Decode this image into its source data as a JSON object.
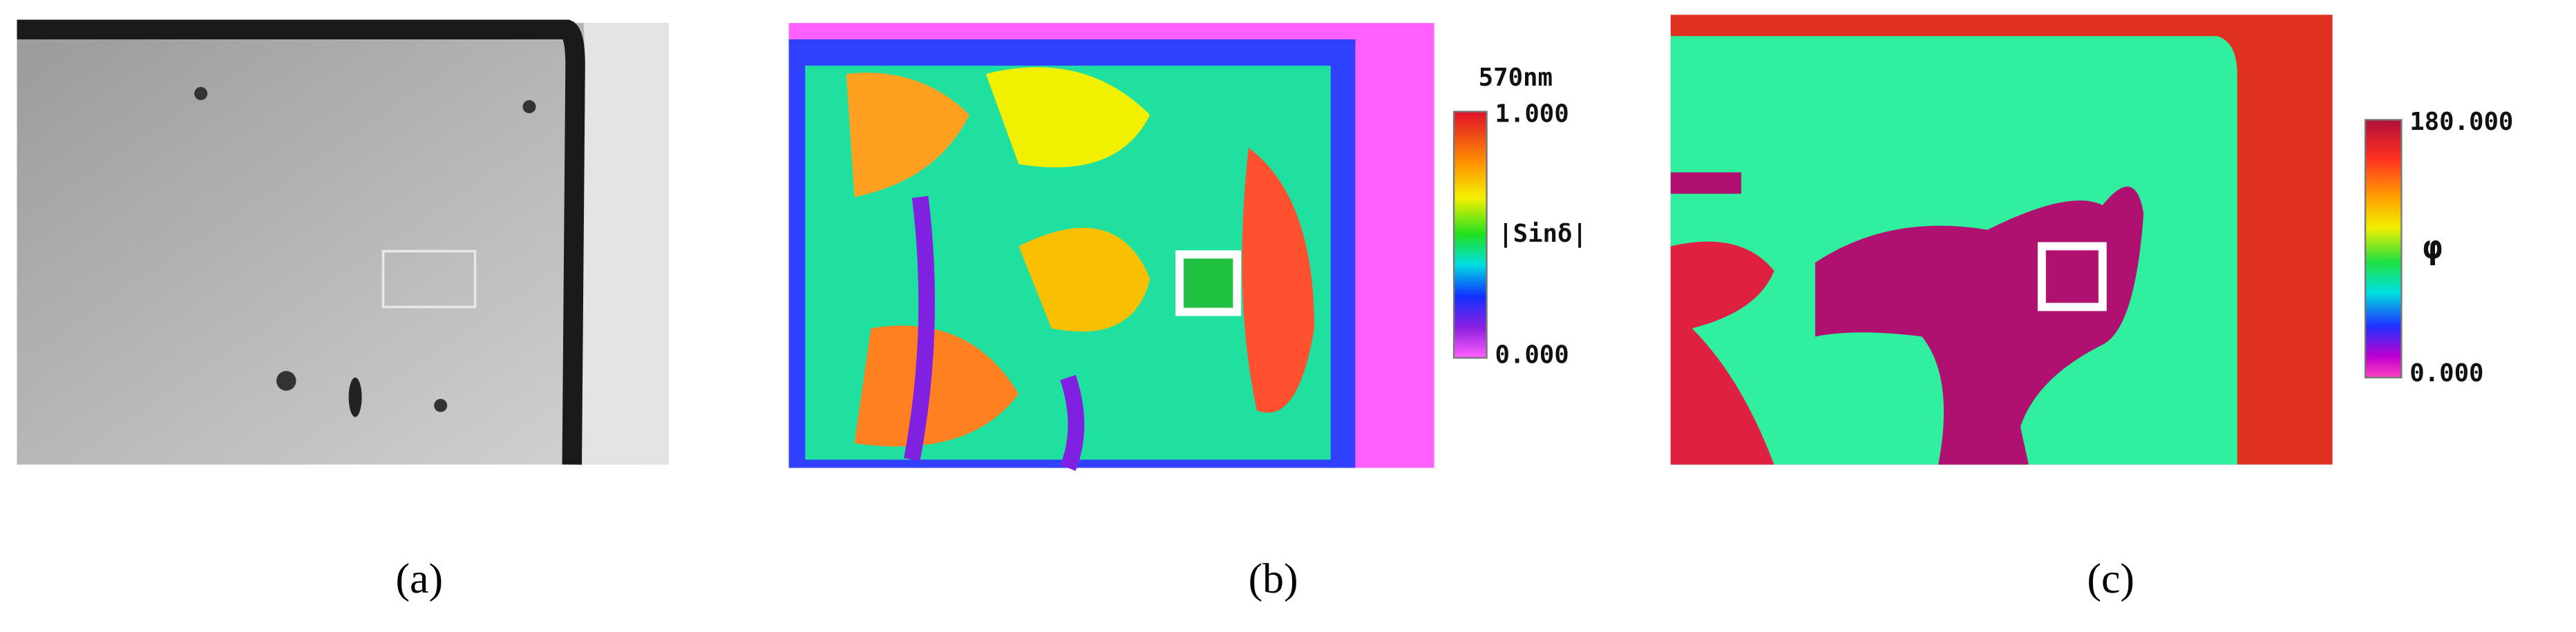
{
  "panels": [
    {
      "label": "(a)"
    },
    {
      "label": "(b)",
      "colorbar": {
        "unit": "570nm",
        "max": "1.000",
        "title": "|Sinδ|",
        "min": "0.000"
      }
    },
    {
      "label": "(c)",
      "colorbar": {
        "max": "180.000",
        "title": "φ",
        "min": "0.000"
      }
    }
  ]
}
